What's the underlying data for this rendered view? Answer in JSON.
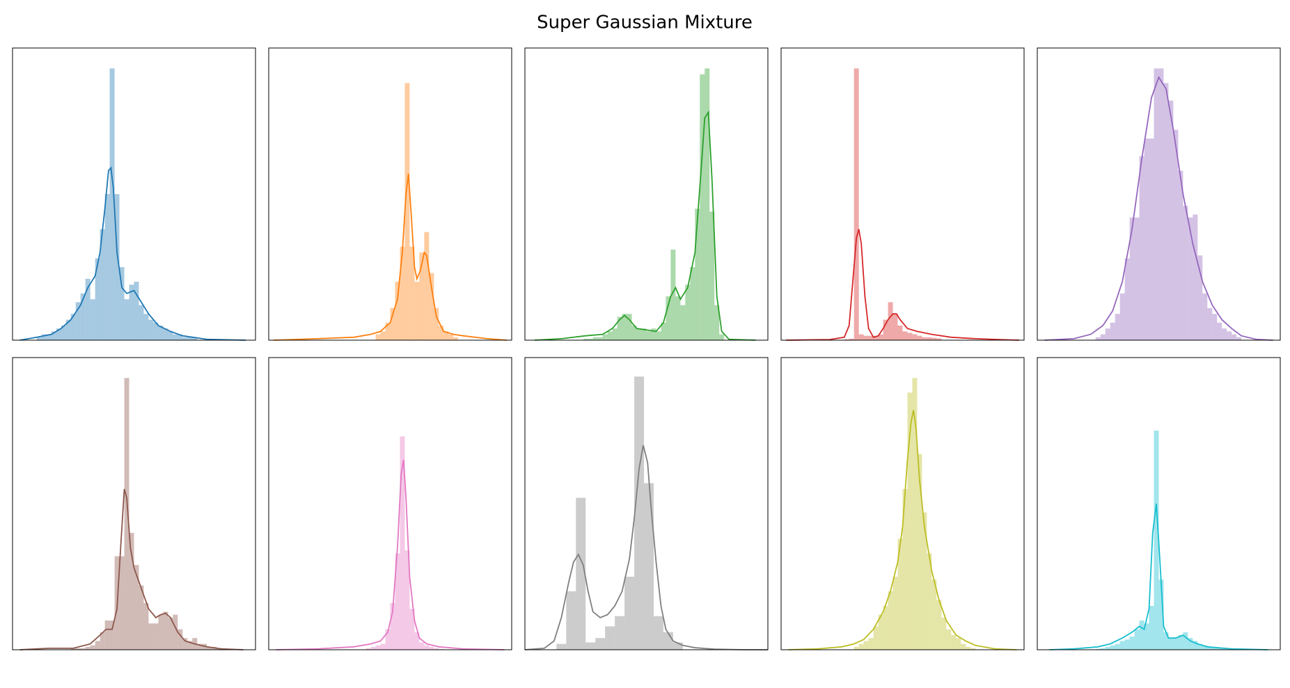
{
  "title": "Super Gaussian Mixture",
  "chart_data": [
    {
      "type": "histogram",
      "color": "#1f77b4",
      "xlim": [
        0,
        100
      ],
      "ylim": [
        0,
        100
      ],
      "bins": [
        10,
        12,
        14,
        16,
        18,
        20,
        22,
        24,
        26,
        28,
        30,
        32,
        34,
        36,
        38,
        40,
        42,
        44,
        46,
        48,
        50,
        52,
        54,
        56,
        58,
        60,
        62,
        64,
        66,
        68,
        70,
        72,
        74,
        76
      ],
      "counts": [
        1,
        2,
        2,
        3,
        4,
        5,
        7,
        9,
        13,
        16,
        21,
        14,
        28,
        38,
        50,
        93,
        50,
        25,
        14,
        19,
        20,
        12,
        9,
        7,
        6,
        5,
        4,
        3,
        2,
        2,
        1,
        1,
        1
      ],
      "line": {
        "x": [
          3,
          10,
          16,
          20,
          24,
          28,
          31,
          34,
          36,
          38,
          39.5,
          40.5,
          41.5,
          43,
          45,
          47,
          50,
          53,
          56,
          60,
          65,
          70,
          80,
          96
        ],
        "values": [
          0,
          1,
          2,
          4,
          7,
          12,
          18,
          22,
          30,
          45,
          58,
          59,
          52,
          30,
          18,
          16,
          17,
          13,
          9,
          5,
          3,
          1.5,
          0.3,
          0
        ]
      }
    },
    {
      "type": "histogram",
      "color": "#ff7f0e",
      "xlim": [
        0,
        100
      ],
      "ylim": [
        0,
        100
      ],
      "bins": [
        44,
        46,
        48,
        50,
        52,
        54,
        56,
        58,
        60,
        62,
        64,
        66,
        68,
        70,
        72,
        74,
        76,
        78
      ],
      "counts": [
        2,
        3,
        6,
        11,
        20,
        32,
        88,
        32,
        20,
        30,
        37,
        23,
        11,
        5,
        3,
        2,
        1
      ],
      "line": {
        "x": [
          2,
          20,
          35,
          42,
          46,
          50,
          53,
          55,
          56.5,
          57.5,
          58.5,
          60,
          61,
          62.5,
          64,
          65,
          67,
          69,
          72,
          76,
          80,
          90,
          98
        ],
        "values": [
          0,
          0.5,
          1,
          2,
          3,
          6,
          14,
          30,
          50,
          57,
          45,
          25,
          21,
          24,
          30,
          29,
          18,
          8,
          3,
          2,
          1.5,
          0.5,
          0
        ]
      }
    },
    {
      "type": "histogram",
      "color": "#2ca02c",
      "xlim": [
        0,
        100
      ],
      "ylim": [
        0,
        100
      ],
      "bins": [
        24,
        26,
        28,
        30,
        32,
        34,
        36,
        38,
        40,
        42,
        44,
        46,
        48,
        50,
        52,
        54,
        56,
        58,
        60,
        62,
        64,
        66,
        68,
        70,
        72,
        74,
        76,
        78,
        80,
        82
      ],
      "counts": [
        0.5,
        0.5,
        1,
        1,
        2,
        3,
        4,
        8,
        9,
        9,
        5,
        4,
        4,
        3,
        4,
        3,
        6,
        15,
        31,
        15,
        12,
        19,
        25,
        45,
        91,
        93,
        44,
        12,
        2
      ],
      "line": {
        "x": [
          4,
          15,
          25,
          32,
          36,
          39,
          41,
          43,
          46,
          50,
          54,
          57,
          60,
          62,
          64,
          67,
          70,
          72.5,
          74,
          75.5,
          77,
          79,
          81,
          84,
          95
        ],
        "values": [
          0,
          0.5,
          1.5,
          2,
          4,
          7,
          8.5,
          7,
          4,
          3.5,
          3,
          6,
          15,
          18,
          14,
          18,
          30,
          58,
          76,
          78,
          55,
          15,
          3,
          0.3,
          0
        ]
      }
    },
    {
      "type": "histogram",
      "color": "#d62728",
      "xlim": [
        0,
        100
      ],
      "ylim": [
        0,
        100
      ],
      "bins": [
        26,
        28,
        30,
        32,
        34,
        36,
        38,
        40,
        42,
        44,
        46,
        48,
        50,
        52,
        54,
        56,
        58,
        60,
        62,
        64,
        66
      ],
      "counts": [
        0.3,
        0.5,
        93,
        2,
        1.5,
        1.5,
        1.5,
        2,
        7,
        13,
        9,
        5,
        3,
        2.5,
        2,
        1.5,
        1,
        1,
        0.8,
        0.6
      ],
      "line": {
        "x": [
          2,
          20,
          26,
          28,
          29.5,
          31,
          32,
          33,
          34.5,
          36,
          38,
          40,
          42,
          44,
          46,
          47.5,
          49,
          52,
          56,
          62,
          70,
          80,
          90,
          98
        ],
        "values": [
          0,
          0.2,
          1,
          5,
          20,
          35,
          38,
          33,
          15,
          4,
          1,
          1.5,
          4,
          7,
          9,
          9,
          7,
          4,
          3,
          2,
          1,
          0.5,
          0.2,
          0
        ]
      }
    },
    {
      "type": "histogram",
      "color": "#9467bd",
      "xlim": [
        0,
        100
      ],
      "ylim": [
        0,
        100
      ],
      "bins": [
        24,
        26,
        28,
        30,
        32,
        34,
        36,
        38,
        40,
        42,
        44,
        46,
        48,
        50,
        52,
        54,
        56,
        58,
        60,
        62,
        64,
        66,
        68,
        70,
        72,
        74,
        76,
        78,
        80,
        82,
        84
      ],
      "counts": [
        1,
        2,
        4,
        6,
        9,
        16,
        28,
        42,
        42,
        63,
        69,
        69,
        93,
        93,
        88,
        82,
        72,
        58,
        46,
        42,
        43,
        29,
        16,
        11,
        9,
        6,
        4,
        3,
        2,
        1
      ],
      "line": {
        "x": [
          3,
          15,
          22,
          27,
          31,
          35,
          39,
          43,
          47,
          50,
          53,
          56,
          60,
          64,
          68,
          72,
          76,
          80,
          84,
          90,
          97
        ],
        "values": [
          0,
          0.5,
          2,
          5,
          10,
          20,
          38,
          62,
          83,
          90,
          86,
          72,
          50,
          33,
          20,
          12,
          7,
          4,
          1.5,
          0.3,
          0
        ]
      }
    },
    {
      "type": "histogram",
      "color": "#8c564b",
      "xlim": [
        0,
        100
      ],
      "ylim": [
        0,
        100
      ],
      "bins": [
        24,
        26,
        28,
        30,
        32,
        34,
        36,
        38,
        40,
        42,
        44,
        46,
        48,
        50,
        52,
        54,
        56,
        58,
        60,
        62,
        64,
        66,
        68,
        70,
        72,
        74,
        76,
        78,
        80,
        82,
        84,
        86,
        88,
        90
      ],
      "counts": [
        0.5,
        0.5,
        0.5,
        1,
        1.5,
        3,
        6,
        10,
        10,
        32,
        32,
        93,
        40,
        29,
        22,
        16,
        9,
        9,
        12,
        13,
        11,
        12,
        7,
        4,
        3,
        4,
        2,
        2,
        1,
        1,
        0.5,
        0.5,
        0.3
      ],
      "line": {
        "x": [
          3,
          15,
          25,
          32,
          36,
          38.5,
          41,
          43,
          44.5,
          46,
          47,
          48.5,
          50,
          53,
          56,
          59,
          61,
          63,
          65,
          68,
          71,
          75,
          80,
          86,
          95
        ],
        "values": [
          0,
          0.5,
          0.5,
          2,
          5,
          7,
          7,
          14,
          35,
          55,
          52,
          35,
          28,
          21,
          14,
          11,
          12,
          12.5,
          11,
          6,
          3,
          2,
          1,
          0.3,
          0
        ]
      }
    },
    {
      "type": "histogram",
      "color": "#e377c2",
      "xlim": [
        0,
        100
      ],
      "ylim": [
        0,
        100
      ],
      "bins": [
        40,
        42,
        44,
        46,
        48,
        50,
        52,
        54,
        56,
        58,
        60,
        62,
        64,
        66,
        68,
        70,
        72
      ],
      "counts": [
        0.5,
        1,
        1.5,
        2,
        7,
        16,
        33,
        73,
        34,
        14,
        6,
        2.5,
        1.5,
        1,
        0.5,
        0.3
      ],
      "line": {
        "x": [
          3,
          20,
          35,
          42,
          46,
          49,
          51,
          53,
          54.5,
          55.5,
          56.5,
          58,
          60,
          62,
          65,
          70,
          80,
          97
        ],
        "values": [
          0,
          0.3,
          1,
          2,
          3,
          6,
          13,
          35,
          60,
          65,
          52,
          25,
          10,
          4,
          2,
          1,
          0.3,
          0
        ]
      }
    },
    {
      "type": "histogram",
      "color": "#7f7f7f",
      "xlim": [
        0,
        100
      ],
      "ylim": [
        0,
        100
      ],
      "bins": [
        13,
        17,
        21,
        25,
        29,
        33,
        37,
        41,
        45,
        49,
        53,
        57,
        61,
        65
      ],
      "counts": [
        2,
        20,
        52,
        2.5,
        4,
        8,
        11.5,
        25,
        93.5,
        57,
        11.5,
        6,
        2.5
      ],
      "line": {
        "x": [
          0,
          8,
          12,
          15,
          18,
          20,
          22,
          24,
          26,
          28,
          31,
          34,
          37,
          40,
          43,
          45,
          47,
          48.7,
          50.5,
          52,
          54,
          56,
          58,
          61,
          65,
          70,
          78,
          90,
          100
        ],
        "values": [
          0,
          0.5,
          3,
          11,
          23,
          30,
          32.6,
          29,
          20,
          13,
          11,
          12,
          15,
          20,
          31,
          45,
          62,
          70,
          64,
          48,
          30,
          15,
          7,
          3,
          1.5,
          0.7,
          0.2,
          0,
          0
        ]
      }
    },
    {
      "type": "histogram",
      "color": "#bcbd22",
      "xlim": [
        0,
        100
      ],
      "ylim": [
        0,
        100
      ],
      "bins": [
        30,
        32,
        34,
        36,
        38,
        40,
        42,
        44,
        46,
        48,
        50,
        52,
        54,
        56,
        58,
        60,
        62,
        64,
        66,
        68,
        70,
        72,
        74,
        76,
        78,
        80
      ],
      "counts": [
        1,
        2,
        3,
        4,
        8,
        12,
        15,
        20,
        25,
        38,
        55,
        88,
        93,
        67,
        47,
        33,
        24,
        17,
        11,
        7,
        5,
        4,
        2,
        1,
        0.5
      ],
      "line": {
        "x": [
          3,
          15,
          25,
          30,
          34,
          38,
          42,
          45,
          48,
          50,
          52,
          53.5,
          54.5,
          55.5,
          57,
          59,
          62,
          65,
          68,
          72,
          76,
          80,
          88,
          97
        ],
        "values": [
          0,
          0.3,
          1,
          2,
          3.5,
          7,
          13,
          20,
          30,
          42,
          65,
          78,
          82,
          76,
          58,
          42,
          27,
          17,
          10,
          5,
          3,
          1.5,
          0.3,
          0
        ]
      }
    },
    {
      "type": "histogram",
      "color": "#17becf",
      "xlim": [
        0,
        100
      ],
      "ylim": [
        0,
        100
      ],
      "bins": [
        24,
        26,
        28,
        30,
        32,
        34,
        36,
        38,
        40,
        42,
        44,
        46,
        48,
        50,
        52,
        54,
        56,
        58,
        60,
        62,
        64,
        66,
        68,
        70,
        72,
        74,
        76,
        78,
        80
      ],
      "counts": [
        0.3,
        0.5,
        1,
        1.5,
        2,
        3,
        3.5,
        4.5,
        7,
        10,
        9,
        15,
        75,
        24,
        6,
        4,
        4,
        5,
        6,
        4,
        3,
        2,
        1.5,
        1,
        0.8,
        0.6,
        0.5,
        0.3
      ],
      "line": {
        "x": [
          5,
          15,
          25,
          30,
          35,
          39,
          42,
          44,
          46,
          47.5,
          49,
          50.5,
          52,
          54,
          57,
          60,
          63,
          66,
          70,
          80,
          95
        ],
        "values": [
          0,
          0.3,
          1,
          2,
          4,
          6,
          8,
          7,
          14,
          40,
          50,
          30,
          8,
          4,
          4,
          5,
          3,
          2,
          1,
          0.3,
          0
        ]
      }
    }
  ]
}
